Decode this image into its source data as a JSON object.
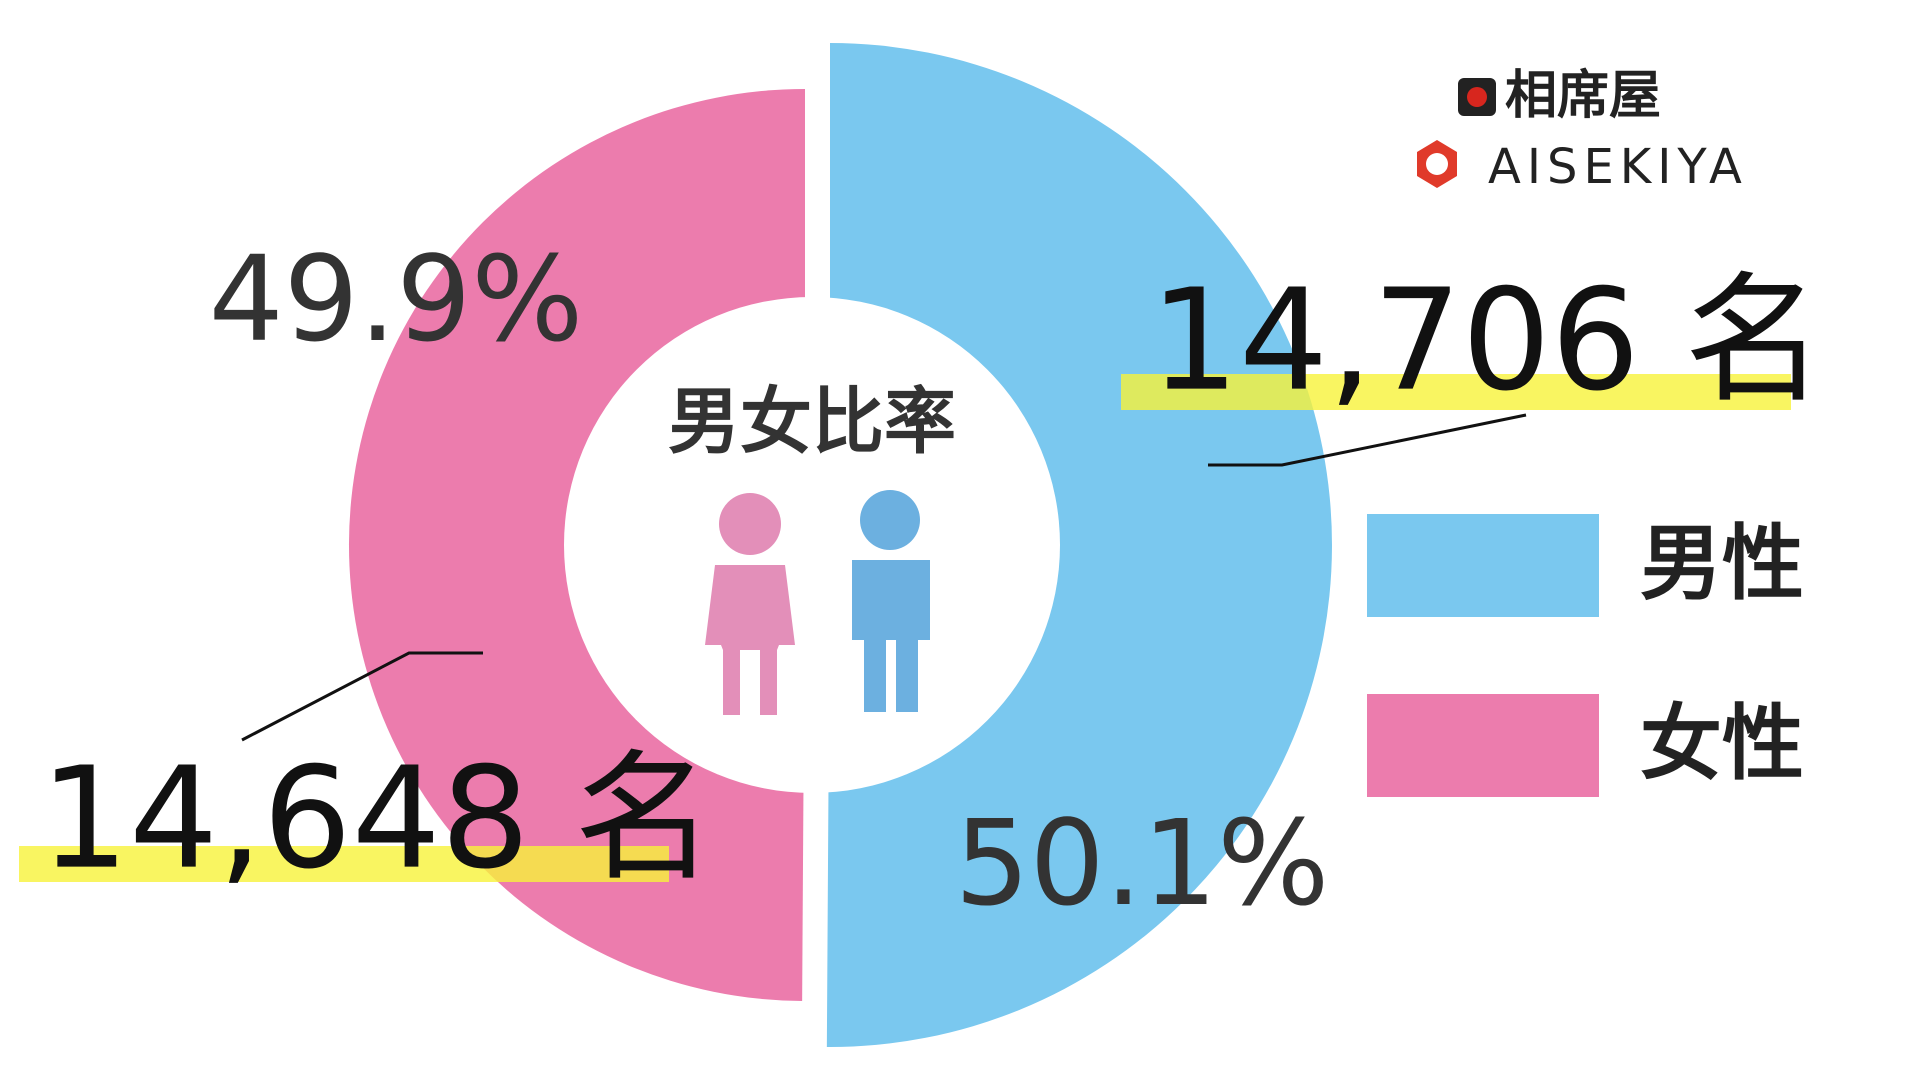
{
  "chart_data": {
    "type": "donut",
    "title": "男女比率",
    "categories": [
      "男性",
      "女性"
    ],
    "values": [
      50.1,
      49.9
    ],
    "value_labels": [
      "50.1%",
      "49.9%"
    ],
    "counts": [
      14706,
      14648
    ],
    "count_labels": [
      "14,706 名",
      "14,648 名"
    ],
    "colors": [
      "#7ac8ef",
      "#ec7cad"
    ]
  },
  "logo": {
    "ja": "相席屋",
    "en": "AISEKIYA"
  }
}
